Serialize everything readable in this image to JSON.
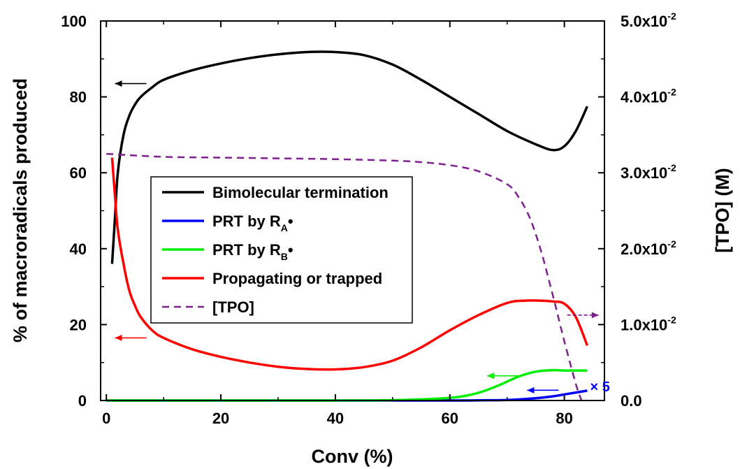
{
  "chart_data": {
    "type": "line",
    "title": "",
    "xlabel": "Conv (%)",
    "ylabel": "% of macroradicals produced",
    "y2label": "[TPO] (M)",
    "xlim": [
      -1,
      87
    ],
    "ylim": [
      0,
      100
    ],
    "y2lim": [
      0,
      0.05
    ],
    "xticks": [
      "0",
      "20",
      "40",
      "60",
      "80"
    ],
    "yticks": [
      "0",
      "20",
      "40",
      "60",
      "80",
      "100"
    ],
    "y2ticks": [
      {
        "mantissa": "0.0",
        "exp": ""
      },
      {
        "mantissa": "1.0x10",
        "exp": "-2"
      },
      {
        "mantissa": "2.0x10",
        "exp": "-2"
      },
      {
        "mantissa": "3.0x10",
        "exp": "-2"
      },
      {
        "mantissa": "4.0x10",
        "exp": "-2"
      },
      {
        "mantissa": "5.0x10",
        "exp": "-2"
      }
    ],
    "grid": false,
    "legend": {
      "position": "center-left",
      "entries": [
        {
          "label": "Bimolecular termination",
          "sub": "",
          "suffix": "",
          "color": "#000000",
          "style": "solid"
        },
        {
          "label": "PRT by R",
          "sub": "A",
          "suffix": "•",
          "color": "#0000ff",
          "style": "solid"
        },
        {
          "label": "PRT by R",
          "sub": "B",
          "suffix": "•",
          "color": "#00ee00",
          "style": "solid"
        },
        {
          "label": "Propagating or trapped",
          "sub": "",
          "suffix": "",
          "color": "#ff0000",
          "style": "solid"
        },
        {
          "label": "[TPO]",
          "sub": "",
          "suffix": "",
          "color": "#7f1f8f",
          "style": "dashed"
        }
      ]
    },
    "annotations": [
      {
        "text": "× 5",
        "x": 84.5,
        "y": 3.9,
        "color": "#0000ff"
      }
    ],
    "axis_arrows": [
      {
        "color": "#000000",
        "x_from": 7,
        "x_to": 1.5,
        "y": 83.5,
        "dashed": false
      },
      {
        "color": "#ff0000",
        "x_from": 7,
        "x_to": 1.5,
        "y": 16.5,
        "dashed": false
      },
      {
        "color": "#00ee00",
        "x_from": 72,
        "x_to": 66.5,
        "y": 6.5,
        "dashed": false
      },
      {
        "color": "#0000ff",
        "x_from": 79,
        "x_to": 73.5,
        "y": 2.7,
        "dashed": false
      },
      {
        "color": "#7f1f8f",
        "x_from": 80.5,
        "x_to": 86,
        "y": 22.5,
        "dashed": true
      }
    ],
    "series": [
      {
        "name": "Bimolecular termination",
        "axis": "left",
        "color": "#000000",
        "dash": false,
        "x": [
          1,
          1.5,
          2,
          3,
          4,
          5,
          6,
          8,
          10,
          15,
          20,
          25,
          30,
          35,
          40,
          45,
          50,
          55,
          60,
          65,
          70,
          75,
          78,
          80,
          82,
          84
        ],
        "y": [
          36,
          48,
          60,
          70,
          75,
          78,
          80,
          82.5,
          84.5,
          87,
          88.8,
          90.2,
          91.2,
          91.8,
          91.8,
          91,
          88.5,
          84.5,
          80,
          75.5,
          71,
          67.5,
          66,
          67,
          71,
          77.5
        ]
      },
      {
        "name": "PRT by RA•",
        "axis": "left",
        "color": "#0000ff",
        "dash": false,
        "x": [
          0,
          40,
          60,
          65,
          70,
          75,
          78,
          80,
          82,
          84
        ],
        "y": [
          0,
          0,
          0,
          0.05,
          0.15,
          0.6,
          1.1,
          1.6,
          2.1,
          2.6
        ]
      },
      {
        "name": "PRT by RB•",
        "axis": "left",
        "color": "#00ee00",
        "dash": false,
        "x": [
          0,
          40,
          50,
          55,
          60,
          63,
          66,
          69,
          72,
          75,
          78,
          80,
          84
        ],
        "y": [
          0,
          0,
          0.1,
          0.3,
          0.7,
          1.3,
          2.5,
          4.3,
          6.3,
          7.6,
          8.0,
          7.9,
          7.9
        ]
      },
      {
        "name": "Propagating or trapped",
        "axis": "left",
        "color": "#ff0000",
        "dash": false,
        "x": [
          1,
          1.5,
          2,
          3,
          4,
          5,
          6,
          8,
          10,
          15,
          20,
          25,
          30,
          35,
          40,
          45,
          50,
          55,
          60,
          65,
          70,
          73,
          76,
          78,
          80,
          82,
          84
        ],
        "y": [
          64,
          54,
          45,
          36,
          29,
          25,
          22,
          18.5,
          16.5,
          13.5,
          11.5,
          10,
          8.9,
          8.3,
          8.2,
          8.8,
          10.5,
          14,
          18.5,
          22.5,
          25.7,
          26.3,
          26.3,
          26.1,
          25.5,
          22,
          14.5
        ]
      },
      {
        "name": "[TPO]",
        "axis": "right",
        "color": "#7f1f8f",
        "dash": true,
        "x": [
          0,
          10,
          20,
          30,
          40,
          50,
          55,
          60,
          65,
          70,
          72,
          74,
          76,
          78,
          80,
          82,
          83
        ],
        "y": [
          0.0325,
          0.0321,
          0.032,
          0.0319,
          0.0318,
          0.0316,
          0.0314,
          0.031,
          0.0302,
          0.0285,
          0.0268,
          0.024,
          0.0195,
          0.0138,
          0.0078,
          0.0022,
          0
        ]
      }
    ]
  }
}
